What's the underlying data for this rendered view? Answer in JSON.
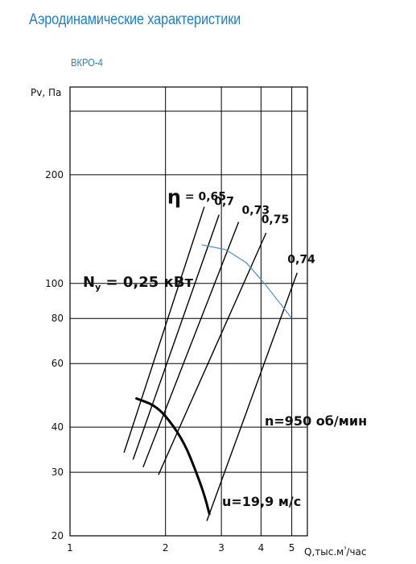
{
  "page": {
    "title": "Аэродинамические характеристики",
    "subtitle": "ВКРО-4"
  },
  "chart_data": {
    "type": "line",
    "xscale": "log",
    "yscale": "log",
    "xlim": [
      1,
      5.6
    ],
    "ylim": [
      20,
      350
    ],
    "xlabel": "Q,тыс.м³/час",
    "ylabel": "Pv, Па",
    "x_ticks": [
      "1",
      "2",
      "3",
      "4",
      "5"
    ],
    "x_tick_values": [
      1,
      2,
      3,
      4,
      5
    ],
    "y_ticks": [
      "20",
      "30",
      "40",
      "60",
      "80",
      "100",
      "200"
    ],
    "y_tick_values": [
      20,
      30,
      40,
      60,
      80,
      100,
      200
    ],
    "grid": true,
    "grid_y_extra": [
      300
    ],
    "efficiency_symbol": "η",
    "efficiency_lines": [
      {
        "label": "= 0,65",
        "points": [
          [
            1.48,
            34
          ],
          [
            2.65,
            163
          ]
        ]
      },
      {
        "label": "0,7",
        "points": [
          [
            1.58,
            32.5
          ],
          [
            2.95,
            155
          ]
        ]
      },
      {
        "label": "0,73",
        "points": [
          [
            1.7,
            31
          ],
          [
            3.4,
            148
          ]
        ]
      },
      {
        "label": "0,75",
        "points": [
          [
            1.9,
            29.5
          ],
          [
            4.15,
            138
          ]
        ]
      },
      {
        "label": "0,74",
        "points": [
          [
            2.7,
            22
          ],
          [
            5.2,
            107
          ]
        ]
      }
    ],
    "performance_curve": {
      "color": "#4a90d4",
      "points": [
        [
          2.6,
          128
        ],
        [
          3.1,
          124
        ],
        [
          3.6,
          114
        ],
        [
          4.1,
          100
        ],
        [
          4.6,
          88
        ],
        [
          5.0,
          80
        ]
      ]
    },
    "power_curve": {
      "color": "#000000",
      "points": [
        [
          1.62,
          48
        ],
        [
          1.85,
          46
        ],
        [
          2.05,
          42
        ],
        [
          2.3,
          36
        ],
        [
          2.5,
          30
        ],
        [
          2.65,
          26
        ],
        [
          2.75,
          23
        ]
      ]
    },
    "annotations": {
      "power_prefix": "N",
      "power_sub": "у",
      "power_value": "= 0,25 кВт",
      "speed": "n=950 об/мин",
      "velocity": "u=19,9 м/с"
    }
  }
}
